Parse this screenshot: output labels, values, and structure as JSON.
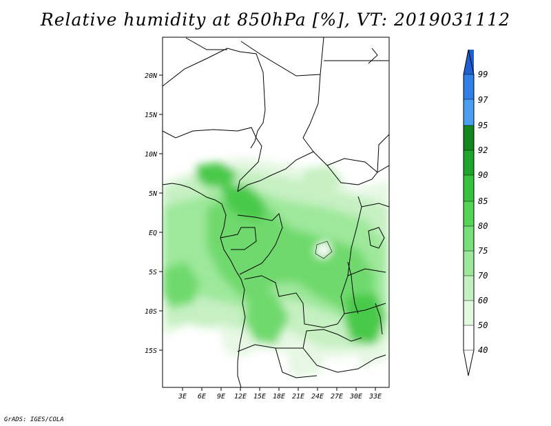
{
  "title": "Relative humidity at 850hPa [%], VT: 2019031112",
  "credit": "GrADS: IGES/COLA",
  "axes": {
    "lat_labels": [
      "20N",
      "15N",
      "10N",
      "5N",
      "EQ",
      "5S",
      "10S",
      "15S"
    ],
    "lon_labels": [
      "3E",
      "6E",
      "9E",
      "12E",
      "15E",
      "18E",
      "21E",
      "24E",
      "27E",
      "30E",
      "33E"
    ]
  },
  "colorbar": {
    "labels": [
      "99",
      "97",
      "95",
      "92",
      "90",
      "85",
      "80",
      "75",
      "70",
      "60",
      "50",
      "40"
    ],
    "colors": [
      "#1f5fcf",
      "#2f7fe6",
      "#4a9ff0",
      "#14861e",
      "#1fa52b",
      "#37c23e",
      "#55d556",
      "#78e078",
      "#9ee89c",
      "#c3f1c0",
      "#e2f8df",
      "#ffffff"
    ]
  },
  "palette": {
    "g1": "#e6f8e3",
    "g2": "#c6f0c2",
    "g3": "#9ee89b",
    "g4": "#6fd96d",
    "g5": "#49c94a",
    "g6": "#2aa934",
    "white": "#ffffff"
  }
}
